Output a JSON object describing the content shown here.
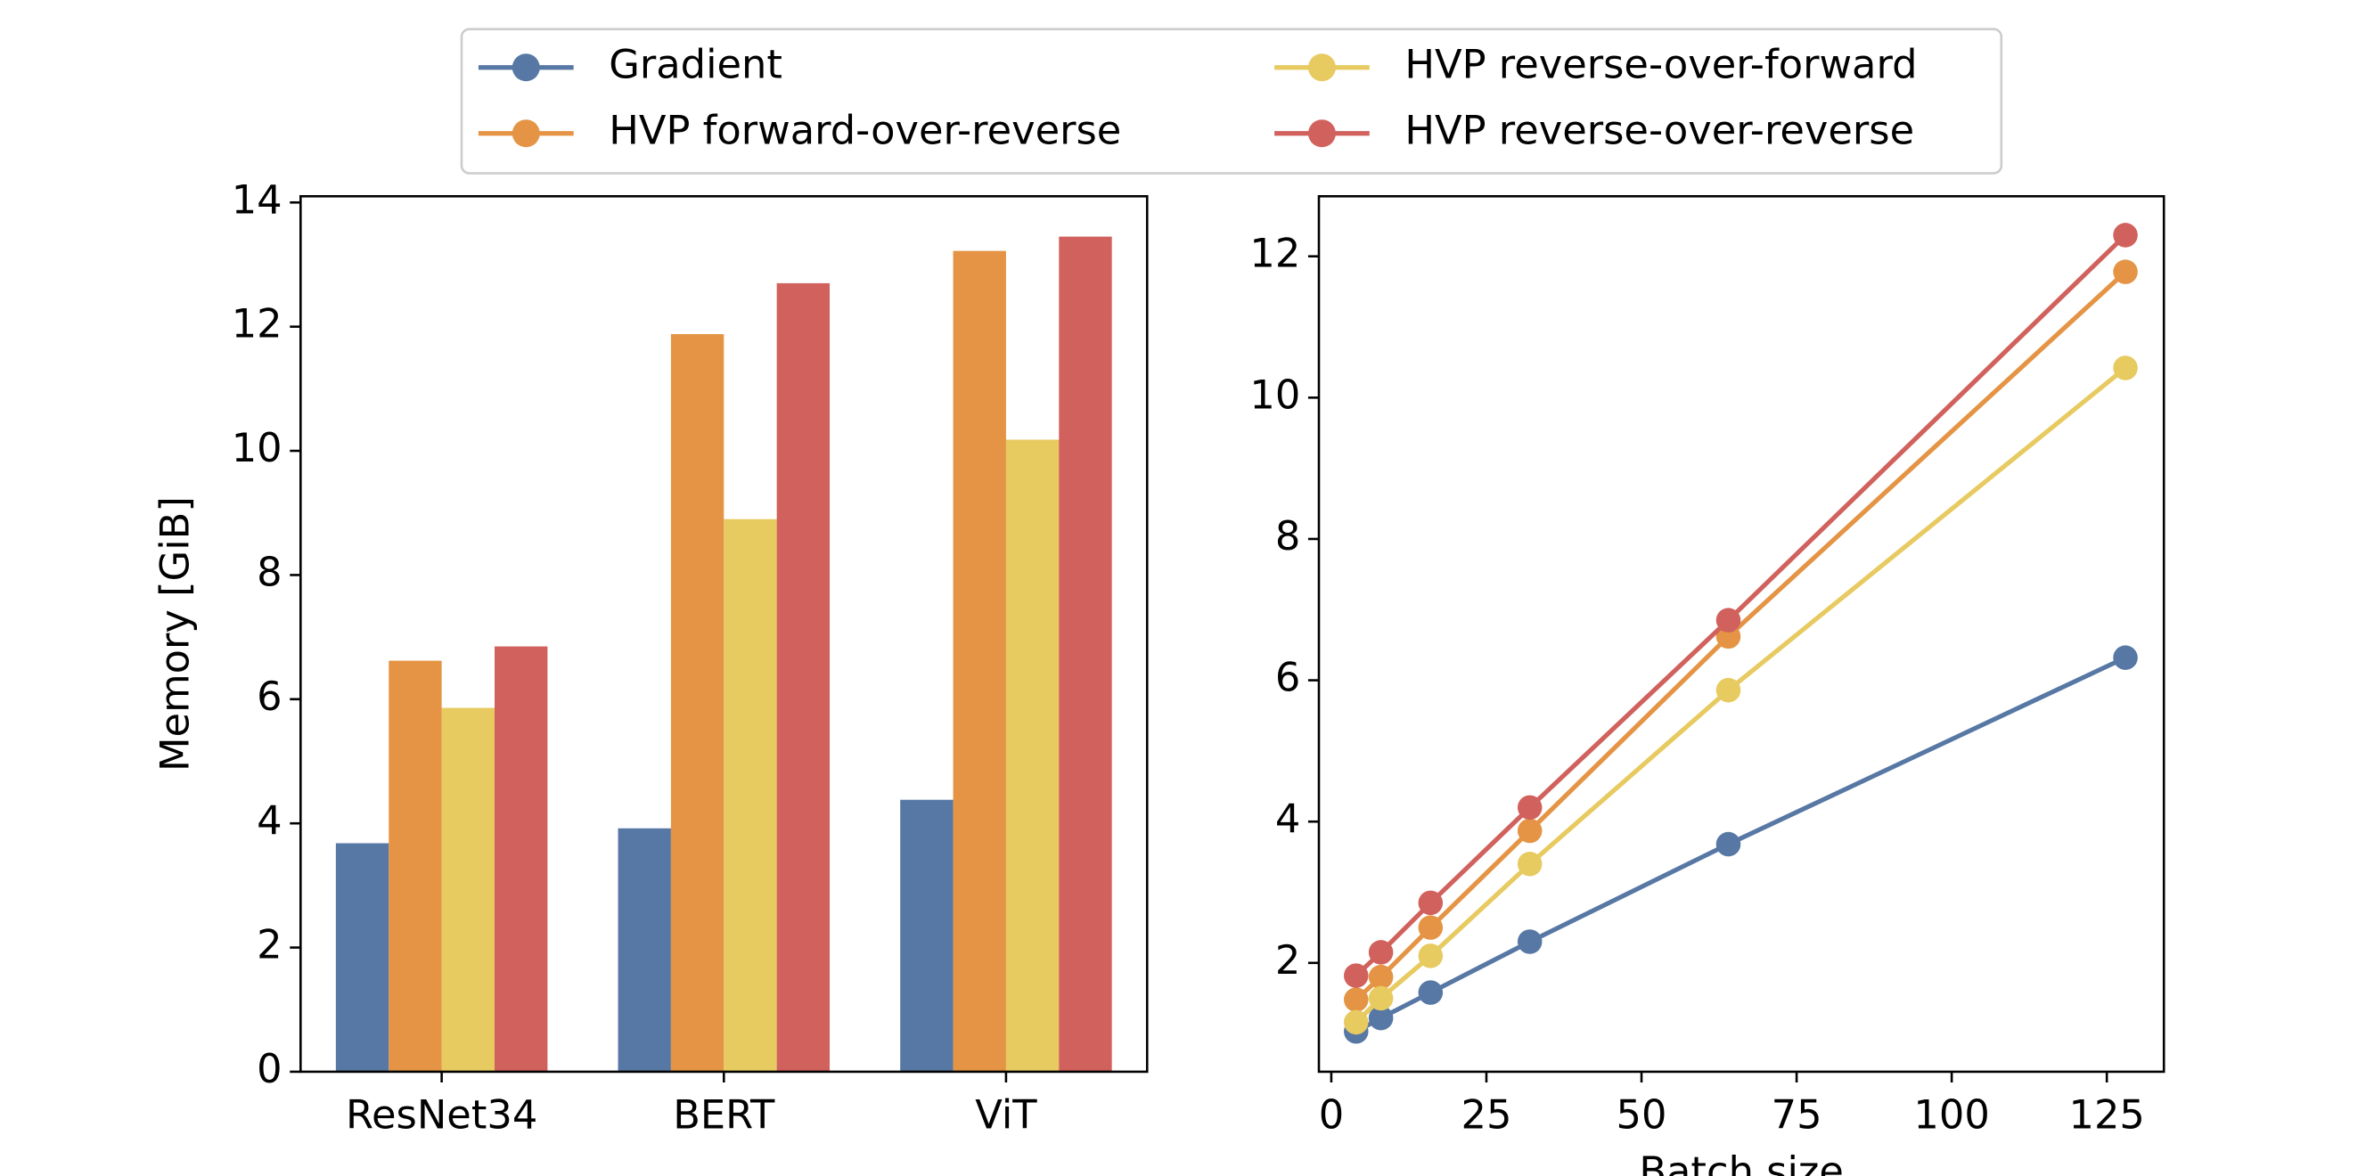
{
  "chart_data": [
    {
      "type": "bar",
      "ylabel": "Memory [GiB]",
      "categories": [
        "ResNet34",
        "BERT",
        "ViT"
      ],
      "series": [
        {
          "name": "Gradient",
          "color": "#5778a4",
          "values": [
            3.68,
            3.92,
            4.38
          ]
        },
        {
          "name": "HVP forward-over-reverse",
          "color": "#e49444",
          "values": [
            6.62,
            11.88,
            13.22
          ]
        },
        {
          "name": "HVP reverse-over-forward",
          "color": "#e7ca60",
          "values": [
            5.86,
            8.9,
            10.18
          ]
        },
        {
          "name": "HVP reverse-over-reverse",
          "color": "#d1615d",
          "values": [
            6.85,
            12.7,
            13.45
          ]
        }
      ],
      "ylim": [
        0,
        14.1
      ],
      "yticks": [
        0,
        2,
        4,
        6,
        8,
        10,
        12,
        14
      ]
    },
    {
      "type": "line",
      "xlabel": "Batch size",
      "x": [
        4,
        8,
        16,
        32,
        64,
        128
      ],
      "series": [
        {
          "color": "#5778a4",
          "values": [
            1.03,
            1.22,
            1.58,
            2.3,
            3.68,
            6.32
          ]
        },
        {
          "color": "#e49444",
          "values": [
            1.48,
            1.8,
            2.5,
            3.87,
            6.62,
            11.78
          ]
        },
        {
          "color": "#e7ca60",
          "values": [
            1.16,
            1.5,
            2.1,
            3.4,
            5.86,
            10.42
          ]
        },
        {
          "color": "#d1615d",
          "values": [
            1.82,
            2.15,
            2.85,
            4.2,
            6.85,
            12.3
          ]
        }
      ],
      "xlim": [
        -2.0,
        134.2
      ],
      "xticks": [
        0,
        25,
        50,
        75,
        100,
        125
      ],
      "ylim": [
        0.46,
        12.85
      ],
      "yticks": [
        2,
        4,
        6,
        8,
        10,
        12
      ]
    }
  ]
}
